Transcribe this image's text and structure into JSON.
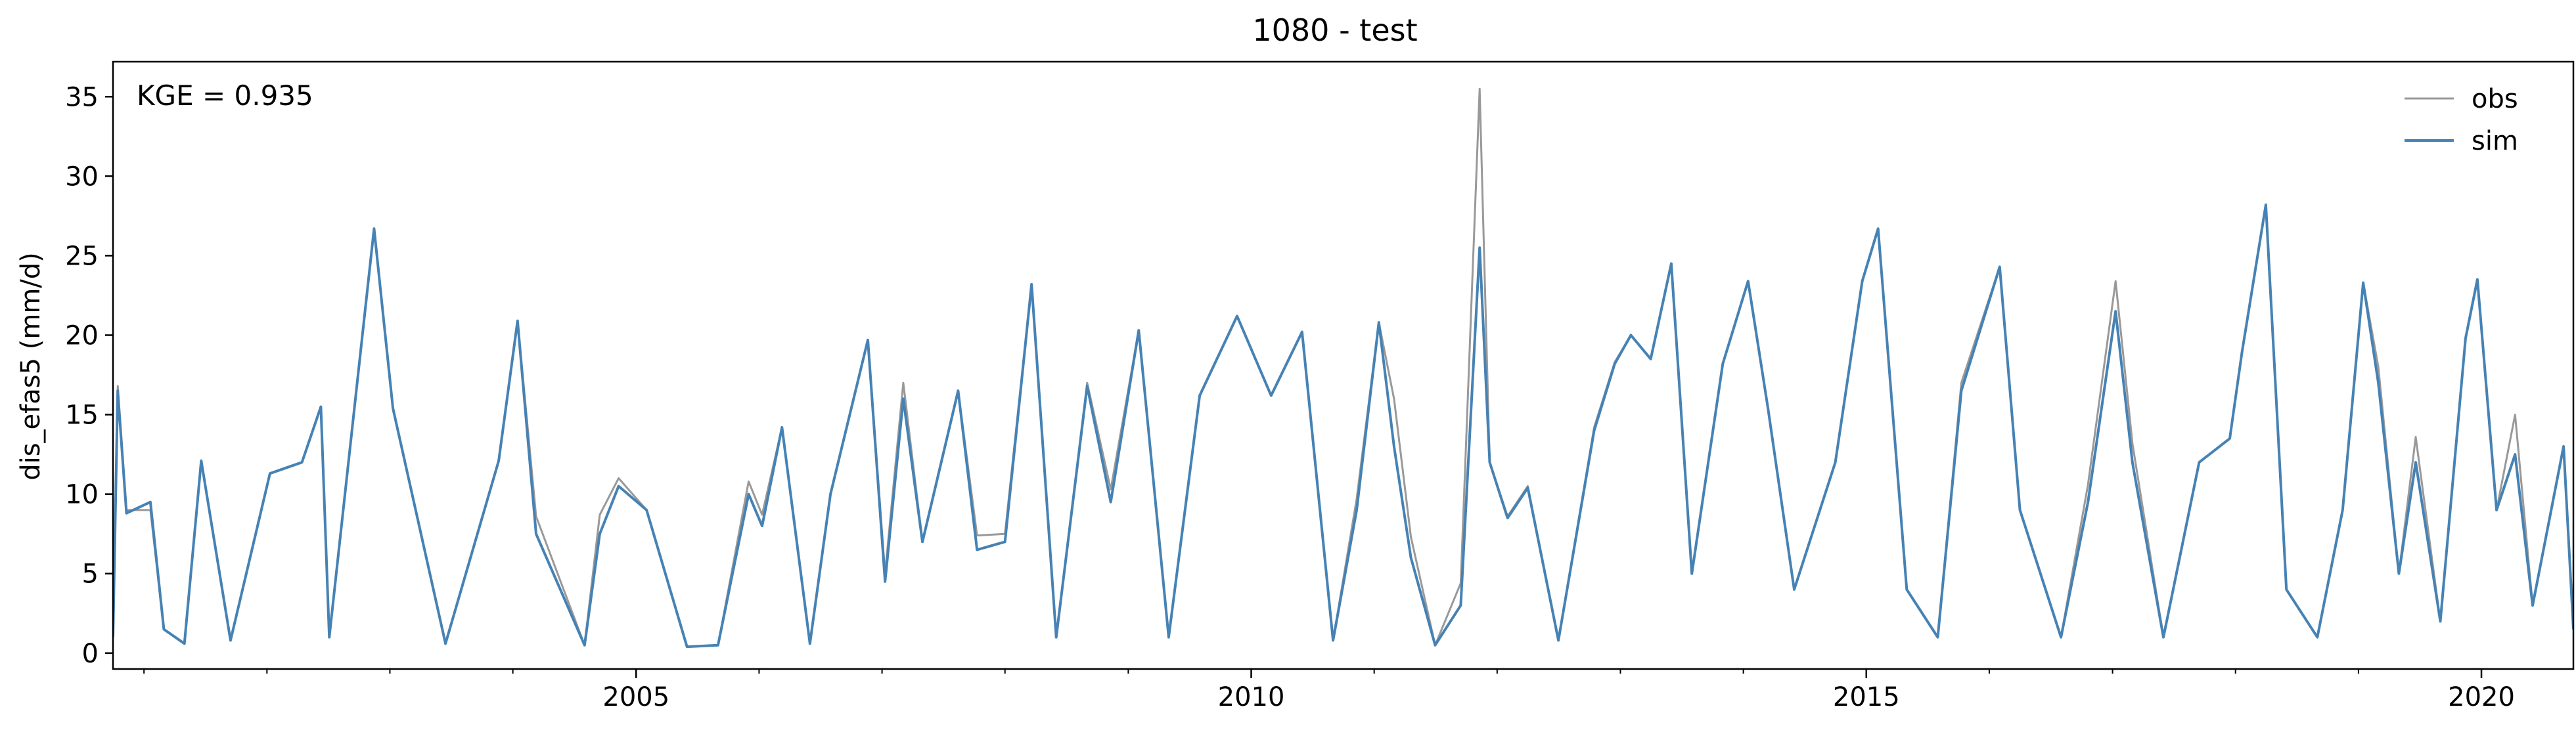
{
  "chart_data": {
    "type": "line",
    "title": "1080 - test",
    "ylabel": "dis_efas5 (mm/d)",
    "xlabel": "",
    "annotation": "KGE = 0.935",
    "legend_position": "top-right",
    "grid": false,
    "xlim": [
      "2000-10-01",
      "2020-09-30"
    ],
    "ylim": [
      -1.0,
      37.2
    ],
    "yticks": [
      0,
      5,
      10,
      15,
      20,
      25,
      30,
      35
    ],
    "xticks": [
      {
        "date": "2005-01-01",
        "label": "2005"
      },
      {
        "date": "2010-01-01",
        "label": "2010"
      },
      {
        "date": "2015-01-01",
        "label": "2015"
      },
      {
        "date": "2020-01-01",
        "label": "2020"
      }
    ],
    "series": [
      {
        "name": "obs",
        "color": "#999999",
        "points": [
          [
            "2000-10-01",
            1.0
          ],
          [
            "2000-10-15",
            16.8
          ],
          [
            "2000-11-10",
            9.0
          ],
          [
            "2001-01-20",
            9.0
          ],
          [
            "2001-03-01",
            1.5
          ],
          [
            "2001-05-01",
            0.6
          ],
          [
            "2001-06-20",
            12.1
          ],
          [
            "2001-09-15",
            0.8
          ],
          [
            "2002-01-10",
            11.3
          ],
          [
            "2002-04-15",
            12.0
          ],
          [
            "2002-06-10",
            15.5
          ],
          [
            "2002-07-05",
            1.0
          ],
          [
            "2002-11-15",
            26.7
          ],
          [
            "2003-01-10",
            15.4
          ],
          [
            "2003-06-15",
            0.6
          ],
          [
            "2003-11-20",
            12.1
          ],
          [
            "2004-01-15",
            20.9
          ],
          [
            "2004-03-10",
            8.6
          ],
          [
            "2004-08-01",
            0.5
          ],
          [
            "2004-09-15",
            8.7
          ],
          [
            "2004-11-10",
            11.0
          ],
          [
            "2005-02-01",
            9.0
          ],
          [
            "2005-06-01",
            0.4
          ],
          [
            "2005-09-01",
            0.5
          ],
          [
            "2005-12-01",
            10.8
          ],
          [
            "2006-01-10",
            8.7
          ],
          [
            "2006-03-10",
            14.2
          ],
          [
            "2006-06-01",
            0.6
          ],
          [
            "2006-08-01",
            10.0
          ],
          [
            "2006-11-20",
            19.7
          ],
          [
            "2007-01-10",
            5.0
          ],
          [
            "2007-03-05",
            17.0
          ],
          [
            "2007-05-01",
            7.0
          ],
          [
            "2007-08-15",
            16.5
          ],
          [
            "2007-10-10",
            7.4
          ],
          [
            "2008-01-01",
            7.5
          ],
          [
            "2008-03-20",
            23.2
          ],
          [
            "2008-06-01",
            1.0
          ],
          [
            "2008-09-01",
            17.0
          ],
          [
            "2008-11-10",
            10.3
          ],
          [
            "2009-02-01",
            20.3
          ],
          [
            "2009-05-01",
            1.0
          ],
          [
            "2009-08-01",
            16.2
          ],
          [
            "2009-11-20",
            21.2
          ],
          [
            "2010-03-01",
            16.2
          ],
          [
            "2010-06-01",
            20.2
          ],
          [
            "2010-09-01",
            0.8
          ],
          [
            "2010-11-10",
            9.7
          ],
          [
            "2011-01-15",
            20.8
          ],
          [
            "2011-03-01",
            16.0
          ],
          [
            "2011-04-20",
            7.3
          ],
          [
            "2011-07-01",
            0.5
          ],
          [
            "2011-09-15",
            4.4
          ],
          [
            "2011-11-10",
            35.5
          ],
          [
            "2011-12-10",
            12.0
          ],
          [
            "2012-02-01",
            8.6
          ],
          [
            "2012-04-01",
            10.5
          ],
          [
            "2012-07-01",
            0.8
          ],
          [
            "2012-10-15",
            14.2
          ],
          [
            "2012-12-15",
            18.3
          ],
          [
            "2013-02-01",
            20.0
          ],
          [
            "2013-04-01",
            18.5
          ],
          [
            "2013-06-01",
            24.5
          ],
          [
            "2013-08-01",
            5.0
          ],
          [
            "2013-11-01",
            18.2
          ],
          [
            "2014-01-15",
            23.4
          ],
          [
            "2014-03-15",
            15.4
          ],
          [
            "2014-06-01",
            4.0
          ],
          [
            "2014-10-01",
            12.0
          ],
          [
            "2014-12-20",
            23.4
          ],
          [
            "2015-02-05",
            26.7
          ],
          [
            "2015-05-01",
            4.0
          ],
          [
            "2015-08-01",
            1.0
          ],
          [
            "2015-10-10",
            17.0
          ],
          [
            "2016-02-01",
            24.3
          ],
          [
            "2016-04-01",
            9.0
          ],
          [
            "2016-08-01",
            1.0
          ],
          [
            "2016-10-20",
            10.6
          ],
          [
            "2017-01-10",
            23.4
          ],
          [
            "2017-03-01",
            13.2
          ],
          [
            "2017-06-01",
            1.0
          ],
          [
            "2017-09-15",
            12.0
          ],
          [
            "2017-12-15",
            13.5
          ],
          [
            "2018-01-20",
            18.9
          ],
          [
            "2018-04-01",
            28.2
          ],
          [
            "2018-06-01",
            4.0
          ],
          [
            "2018-09-01",
            1.0
          ],
          [
            "2018-11-15",
            9.0
          ],
          [
            "2019-01-15",
            23.3
          ],
          [
            "2019-03-01",
            18.0
          ],
          [
            "2019-05-01",
            5.0
          ],
          [
            "2019-06-20",
            13.6
          ],
          [
            "2019-09-01",
            2.0
          ],
          [
            "2019-11-15",
            19.8
          ],
          [
            "2019-12-20",
            23.5
          ],
          [
            "2020-02-15",
            9.0
          ],
          [
            "2020-04-10",
            15.0
          ],
          [
            "2020-06-01",
            3.0
          ],
          [
            "2020-09-01",
            13.0
          ],
          [
            "2020-09-30",
            1.5
          ]
        ]
      },
      {
        "name": "sim",
        "color": "#4682b4",
        "points": [
          [
            "2000-10-01",
            1.0
          ],
          [
            "2000-10-15",
            16.5
          ],
          [
            "2000-11-10",
            8.8
          ],
          [
            "2001-01-20",
            9.5
          ],
          [
            "2001-03-01",
            1.5
          ],
          [
            "2001-05-01",
            0.6
          ],
          [
            "2001-06-20",
            12.1
          ],
          [
            "2001-09-15",
            0.8
          ],
          [
            "2002-01-10",
            11.3
          ],
          [
            "2002-04-15",
            12.0
          ],
          [
            "2002-06-10",
            15.5
          ],
          [
            "2002-07-05",
            1.0
          ],
          [
            "2002-11-15",
            26.7
          ],
          [
            "2003-01-10",
            15.4
          ],
          [
            "2003-06-15",
            0.6
          ],
          [
            "2003-11-20",
            12.1
          ],
          [
            "2004-01-15",
            20.9
          ],
          [
            "2004-03-10",
            7.5
          ],
          [
            "2004-08-01",
            0.5
          ],
          [
            "2004-09-15",
            7.5
          ],
          [
            "2004-11-10",
            10.5
          ],
          [
            "2005-02-01",
            9.0
          ],
          [
            "2005-06-01",
            0.4
          ],
          [
            "2005-09-01",
            0.5
          ],
          [
            "2005-12-01",
            10.0
          ],
          [
            "2006-01-10",
            8.0
          ],
          [
            "2006-03-10",
            14.2
          ],
          [
            "2006-06-01",
            0.6
          ],
          [
            "2006-08-01",
            10.0
          ],
          [
            "2006-11-20",
            19.7
          ],
          [
            "2007-01-10",
            4.5
          ],
          [
            "2007-03-05",
            16.0
          ],
          [
            "2007-05-01",
            7.0
          ],
          [
            "2007-08-15",
            16.5
          ],
          [
            "2007-10-10",
            6.5
          ],
          [
            "2008-01-01",
            7.0
          ],
          [
            "2008-03-20",
            23.2
          ],
          [
            "2008-06-01",
            1.0
          ],
          [
            "2008-09-01",
            16.8
          ],
          [
            "2008-11-10",
            9.5
          ],
          [
            "2009-02-01",
            20.3
          ],
          [
            "2009-05-01",
            1.0
          ],
          [
            "2009-08-01",
            16.2
          ],
          [
            "2009-11-20",
            21.2
          ],
          [
            "2010-03-01",
            16.2
          ],
          [
            "2010-06-01",
            20.2
          ],
          [
            "2010-09-01",
            0.8
          ],
          [
            "2010-11-10",
            9.0
          ],
          [
            "2011-01-15",
            20.8
          ],
          [
            "2011-03-01",
            13.0
          ],
          [
            "2011-04-20",
            6.0
          ],
          [
            "2011-07-01",
            0.5
          ],
          [
            "2011-09-15",
            3.0
          ],
          [
            "2011-11-10",
            25.5
          ],
          [
            "2011-12-10",
            12.0
          ],
          [
            "2012-02-01",
            8.5
          ],
          [
            "2012-04-01",
            10.4
          ],
          [
            "2012-07-01",
            0.8
          ],
          [
            "2012-10-15",
            14.0
          ],
          [
            "2012-12-15",
            18.2
          ],
          [
            "2013-02-01",
            20.0
          ],
          [
            "2013-04-01",
            18.5
          ],
          [
            "2013-06-01",
            24.5
          ],
          [
            "2013-08-01",
            5.0
          ],
          [
            "2013-11-01",
            18.2
          ],
          [
            "2014-01-15",
            23.4
          ],
          [
            "2014-03-15",
            15.4
          ],
          [
            "2014-06-01",
            4.0
          ],
          [
            "2014-10-01",
            12.0
          ],
          [
            "2014-12-20",
            23.4
          ],
          [
            "2015-02-05",
            26.7
          ],
          [
            "2015-05-01",
            4.0
          ],
          [
            "2015-08-01",
            1.0
          ],
          [
            "2015-10-10",
            16.5
          ],
          [
            "2016-02-01",
            24.3
          ],
          [
            "2016-04-01",
            9.0
          ],
          [
            "2016-08-01",
            1.0
          ],
          [
            "2016-10-20",
            9.5
          ],
          [
            "2017-01-10",
            21.5
          ],
          [
            "2017-03-01",
            12.0
          ],
          [
            "2017-06-01",
            1.0
          ],
          [
            "2017-09-15",
            12.0
          ],
          [
            "2017-12-15",
            13.5
          ],
          [
            "2018-01-20",
            18.9
          ],
          [
            "2018-04-01",
            28.2
          ],
          [
            "2018-06-01",
            4.0
          ],
          [
            "2018-09-01",
            1.0
          ],
          [
            "2018-11-15",
            9.0
          ],
          [
            "2019-01-15",
            23.3
          ],
          [
            "2019-03-01",
            17.0
          ],
          [
            "2019-05-01",
            5.0
          ],
          [
            "2019-06-20",
            12.0
          ],
          [
            "2019-09-01",
            2.0
          ],
          [
            "2019-11-15",
            19.8
          ],
          [
            "2019-12-20",
            23.5
          ],
          [
            "2020-02-15",
            9.0
          ],
          [
            "2020-04-10",
            12.5
          ],
          [
            "2020-06-01",
            3.0
          ],
          [
            "2020-09-01",
            13.0
          ],
          [
            "2020-09-30",
            1.5
          ]
        ]
      }
    ]
  }
}
